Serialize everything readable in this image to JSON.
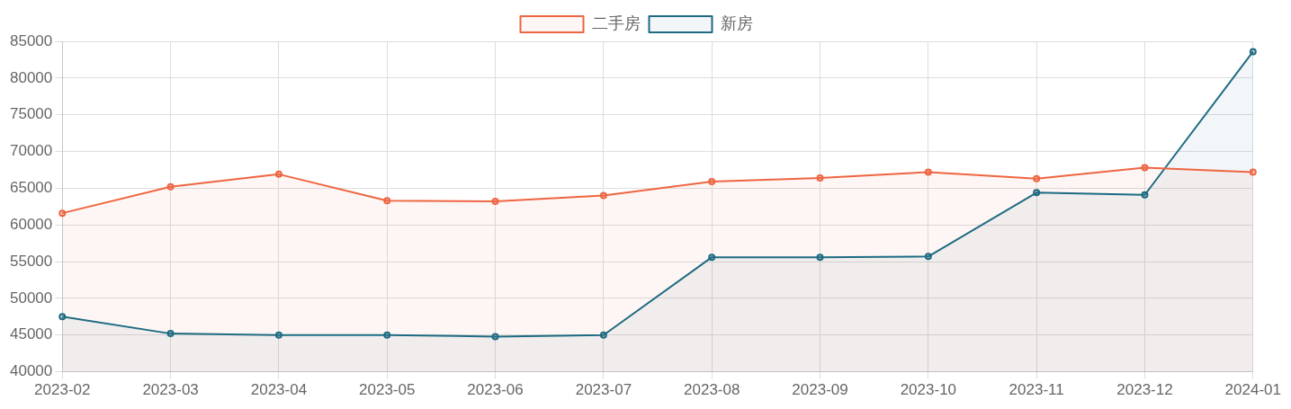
{
  "chart_data": {
    "type": "area",
    "categories": [
      "2023-02",
      "2023-03",
      "2023-04",
      "2023-05",
      "2023-06",
      "2023-07",
      "2023-08",
      "2023-09",
      "2023-10",
      "2023-11",
      "2023-12",
      "2024-01"
    ],
    "series": [
      {
        "name": "二手房",
        "color": "#ee6541",
        "values": [
          61600,
          65200,
          66900,
          63300,
          63200,
          64000,
          65900,
          66400,
          67200,
          66300,
          67800,
          67200
        ]
      },
      {
        "name": "新房",
        "color": "#1d6b82",
        "values": [
          47500,
          45200,
          45000,
          45000,
          44800,
          45000,
          55600,
          55600,
          55700,
          64400,
          64100,
          83600
        ]
      }
    ],
    "ylim": [
      40000,
      85000
    ],
    "yticks": [
      40000,
      45000,
      50000,
      55000,
      60000,
      65000,
      70000,
      75000,
      80000,
      85000
    ],
    "grid": true,
    "legend": "top",
    "marker": "circle",
    "line_style": "solid"
  }
}
